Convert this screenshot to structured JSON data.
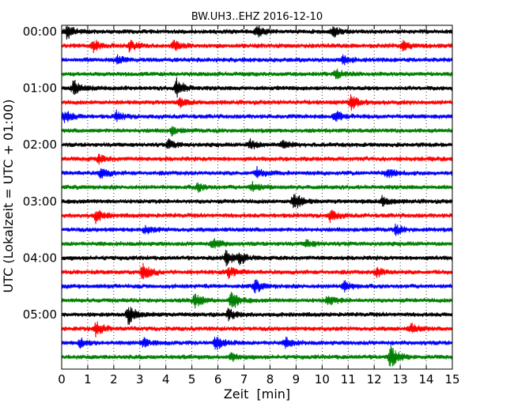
{
  "chart_data": {
    "type": "line",
    "title": "BW.UH3..EHZ 2016-12-10",
    "xlabel": "Zeit  [min]",
    "ylabel": "UTC (Lokalzeit = UTC + 01:00)",
    "xlim": [
      0,
      15
    ],
    "x_ticks": [
      "0",
      "1",
      "2",
      "3",
      "4",
      "5",
      "6",
      "7",
      "8",
      "9",
      "10",
      "11",
      "12",
      "13",
      "14",
      "15"
    ],
    "y_tick_labels": [
      "00:00",
      "01:00",
      "02:00",
      "03:00",
      "04:00",
      "05:00"
    ],
    "grid": {
      "x": true,
      "y": false,
      "style": "dotted"
    },
    "trace_interval_min": 15,
    "trace_colors": [
      "#000000",
      "#ff0000",
      "#0000ff",
      "#008000"
    ],
    "traces": [
      {
        "start": "00:00",
        "color": "#000000",
        "events": [
          {
            "t": 0.2,
            "amp": 9
          },
          {
            "t": 7.5,
            "amp": 8
          },
          {
            "t": 10.4,
            "amp": 7
          }
        ]
      },
      {
        "start": "00:15",
        "color": "#ff0000",
        "events": [
          {
            "t": 1.2,
            "amp": 8
          },
          {
            "t": 2.6,
            "amp": 7
          },
          {
            "t": 4.3,
            "amp": 6
          },
          {
            "t": 13.1,
            "amp": 6
          }
        ]
      },
      {
        "start": "00:30",
        "color": "#0000ff",
        "events": [
          {
            "t": 2.1,
            "amp": 5
          },
          {
            "t": 10.8,
            "amp": 6
          }
        ]
      },
      {
        "start": "00:45",
        "color": "#008000",
        "events": [
          {
            "t": 10.5,
            "amp": 6
          }
        ]
      },
      {
        "start": "01:00",
        "color": "#000000",
        "events": [
          {
            "t": 0.45,
            "amp": 11
          },
          {
            "t": 4.4,
            "amp": 12
          }
        ]
      },
      {
        "start": "01:15",
        "color": "#ff0000",
        "events": [
          {
            "t": 4.5,
            "amp": 5
          },
          {
            "t": 11.1,
            "amp": 9
          }
        ]
      },
      {
        "start": "01:30",
        "color": "#0000ff",
        "events": [
          {
            "t": 0.1,
            "amp": 8
          },
          {
            "t": 2.1,
            "amp": 6
          },
          {
            "t": 10.5,
            "amp": 7
          }
        ]
      },
      {
        "start": "01:45",
        "color": "#008000",
        "events": [
          {
            "t": 4.2,
            "amp": 5
          }
        ]
      },
      {
        "start": "02:00",
        "color": "#000000",
        "events": [
          {
            "t": 4.1,
            "amp": 6
          },
          {
            "t": 7.2,
            "amp": 7
          },
          {
            "t": 8.5,
            "amp": 5
          }
        ]
      },
      {
        "start": "02:15",
        "color": "#ff0000",
        "events": [
          {
            "t": 1.4,
            "amp": 5
          }
        ]
      },
      {
        "start": "02:30",
        "color": "#0000ff",
        "events": [
          {
            "t": 1.5,
            "amp": 7
          },
          {
            "t": 7.5,
            "amp": 6
          },
          {
            "t": 12.5,
            "amp": 6
          }
        ]
      },
      {
        "start": "02:45",
        "color": "#008000",
        "events": [
          {
            "t": 5.2,
            "amp": 5
          },
          {
            "t": 7.3,
            "amp": 6
          }
        ]
      },
      {
        "start": "03:00",
        "color": "#000000",
        "events": [
          {
            "t": 8.9,
            "amp": 12
          },
          {
            "t": 12.3,
            "amp": 6
          }
        ]
      },
      {
        "start": "03:15",
        "color": "#ff0000",
        "events": [
          {
            "t": 1.3,
            "amp": 8
          },
          {
            "t": 10.3,
            "amp": 7
          }
        ]
      },
      {
        "start": "03:30",
        "color": "#0000ff",
        "events": [
          {
            "t": 3.2,
            "amp": 5
          },
          {
            "t": 12.8,
            "amp": 6
          }
        ]
      },
      {
        "start": "03:45",
        "color": "#008000",
        "events": [
          {
            "t": 5.8,
            "amp": 7
          },
          {
            "t": 9.4,
            "amp": 5
          }
        ]
      },
      {
        "start": "04:00",
        "color": "#000000",
        "events": [
          {
            "t": 6.3,
            "amp": 9
          },
          {
            "t": 6.8,
            "amp": 8
          }
        ]
      },
      {
        "start": "04:15",
        "color": "#ff0000",
        "events": [
          {
            "t": 3.1,
            "amp": 12
          },
          {
            "t": 6.4,
            "amp": 6
          },
          {
            "t": 12.1,
            "amp": 6
          }
        ]
      },
      {
        "start": "04:30",
        "color": "#0000ff",
        "events": [
          {
            "t": 7.4,
            "amp": 8
          },
          {
            "t": 10.8,
            "amp": 7
          }
        ]
      },
      {
        "start": "04:45",
        "color": "#008000",
        "events": [
          {
            "t": 5.1,
            "amp": 9
          },
          {
            "t": 6.5,
            "amp": 12
          },
          {
            "t": 10.2,
            "amp": 7
          }
        ]
      },
      {
        "start": "05:00",
        "color": "#000000",
        "events": [
          {
            "t": 2.55,
            "amp": 13
          },
          {
            "t": 6.4,
            "amp": 7
          }
        ]
      },
      {
        "start": "05:15",
        "color": "#ff0000",
        "events": [
          {
            "t": 1.3,
            "amp": 9
          },
          {
            "t": 13.4,
            "amp": 6
          }
        ]
      },
      {
        "start": "05:30",
        "color": "#0000ff",
        "events": [
          {
            "t": 0.7,
            "amp": 6
          },
          {
            "t": 3.1,
            "amp": 6
          },
          {
            "t": 5.9,
            "amp": 9
          },
          {
            "t": 8.6,
            "amp": 6
          }
        ]
      },
      {
        "start": "05:45",
        "color": "#008000",
        "events": [
          {
            "t": 12.6,
            "amp": 15
          },
          {
            "t": 6.5,
            "amp": 5
          }
        ]
      }
    ]
  }
}
